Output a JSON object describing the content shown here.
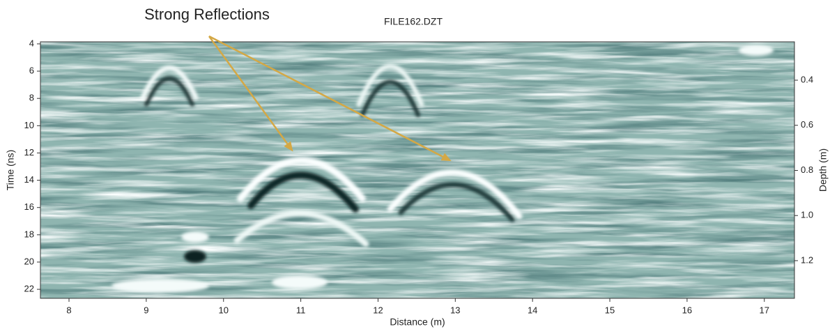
{
  "chart_data": {
    "type": "radargram",
    "title": "FILE162.DZT",
    "x_label": "Distance (m)",
    "y_label": "Time (ns)",
    "y2_label": "Depth (m)",
    "xlim": [
      7.63,
      17.39
    ],
    "xticks": [
      8,
      9,
      10,
      11,
      12,
      13,
      14,
      15,
      16,
      17
    ],
    "ylim": [
      3.85,
      22.66
    ],
    "yticks": [
      4,
      6,
      8,
      10,
      12,
      14,
      16,
      18,
      20,
      22
    ],
    "y2lim": [
      0.23,
      1.367
    ],
    "y2ticks": [
      0.4,
      0.6,
      0.8,
      {
        "value": 1,
        "label": "1.0"
      },
      1.2
    ],
    "color": "#d4a845",
    "annotations": [
      {
        "text": "Strong Reflections",
        "points": [
          {
            "x": 10.9,
            "y": 11.9
          },
          {
            "x": 12.95,
            "y": 12.6
          }
        ]
      }
    ]
  }
}
